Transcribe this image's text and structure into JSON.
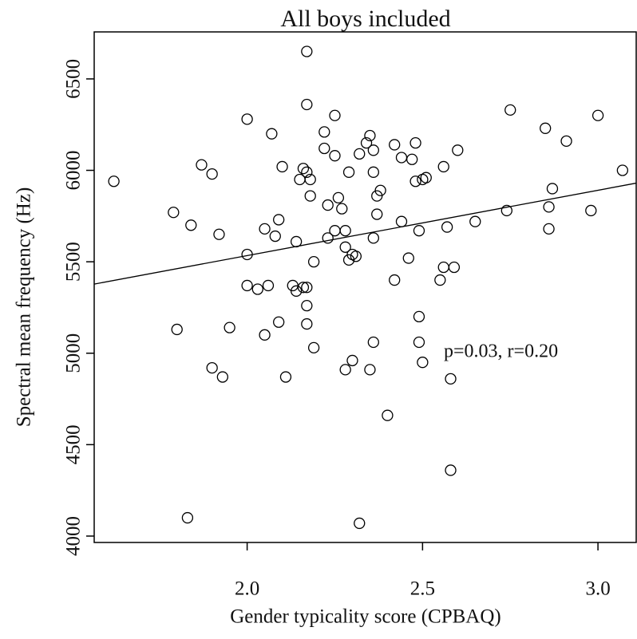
{
  "chart_data": {
    "type": "scatter",
    "title": "All boys included",
    "xlabel": "Gender typicality score (CPBAQ)",
    "ylabel": "Spectral mean frequency (Hz)",
    "annotation": "p=0.03, r=0.20",
    "xlim": [
      1.564,
      3.109
    ],
    "ylim": [
      3965,
      6757
    ],
    "xticks": [
      {
        "value": 2,
        "label": "2.0"
      },
      {
        "value": 2.5,
        "label": "2.5"
      },
      {
        "value": 3,
        "label": "3.0"
      }
    ],
    "yticks": [
      4000,
      4500,
      5000,
      5500,
      6000,
      6500
    ],
    "color": "#000000",
    "fit_line": {
      "x": [
        1.564,
        3.109
      ],
      "y": [
        5378,
        5930
      ]
    },
    "x": [
      1.62,
      1.79,
      1.84,
      1.8,
      1.83,
      1.87,
      1.9,
      1.92,
      1.95,
      1.9,
      1.93,
      2.0,
      2.0,
      2.0,
      2.03,
      2.05,
      2.06,
      2.05,
      2.07,
      2.08,
      2.09,
      2.1,
      2.09,
      2.11,
      2.14,
      2.16,
      2.17,
      2.15,
      2.18,
      2.18,
      2.17,
      2.17,
      2.13,
      2.14,
      2.16,
      2.17,
      2.17,
      2.17,
      2.19,
      2.19,
      2.22,
      2.22,
      2.23,
      2.23,
      2.25,
      2.25,
      2.25,
      2.26,
      2.27,
      2.28,
      2.29,
      2.28,
      2.29,
      2.3,
      2.31,
      2.3,
      2.28,
      2.32,
      2.34,
      2.35,
      2.36,
      2.36,
      2.37,
      2.38,
      2.37,
      2.36,
      2.35,
      2.36,
      2.4,
      2.32,
      2.42,
      2.42,
      2.44,
      2.44,
      2.46,
      2.47,
      2.48,
      2.48,
      2.5,
      2.51,
      2.49,
      2.49,
      2.49,
      2.5,
      2.56,
      2.6,
      2.55,
      2.56,
      2.59,
      2.57,
      2.58,
      2.58,
      2.65,
      2.74,
      2.75,
      2.85,
      2.86,
      2.86,
      2.87,
      2.91,
      2.98,
      3.0,
      3.07
    ],
    "y": [
      5940,
      5770,
      5700,
      5130,
      4100,
      6030,
      5980,
      5650,
      5140,
      4920,
      4870,
      6280,
      5540,
      5370,
      5350,
      5680,
      5370,
      5100,
      6200,
      5640,
      5730,
      6020,
      5170,
      4870,
      5610,
      6010,
      5990,
      5950,
      5950,
      5860,
      6360,
      6650,
      5370,
      5340,
      5360,
      5360,
      5260,
      5160,
      5500,
      5030,
      6210,
      6120,
      5630,
      5810,
      5670,
      6300,
      6080,
      5850,
      5790,
      5670,
      5990,
      5580,
      5510,
      5540,
      5530,
      4960,
      4910,
      6090,
      6150,
      6190,
      6110,
      5990,
      5860,
      5890,
      5760,
      5630,
      4910,
      5060,
      4660,
      4070,
      5400,
      6140,
      6070,
      5720,
      5520,
      6060,
      6150,
      5940,
      5950,
      5960,
      5670,
      5200,
      5060,
      4950,
      6020,
      6110,
      5400,
      5470,
      5470,
      5690,
      4860,
      4360,
      5720,
      5780,
      6330,
      6230,
      5800,
      5680,
      5900,
      6160,
      5780,
      6300,
      6000
    ]
  }
}
